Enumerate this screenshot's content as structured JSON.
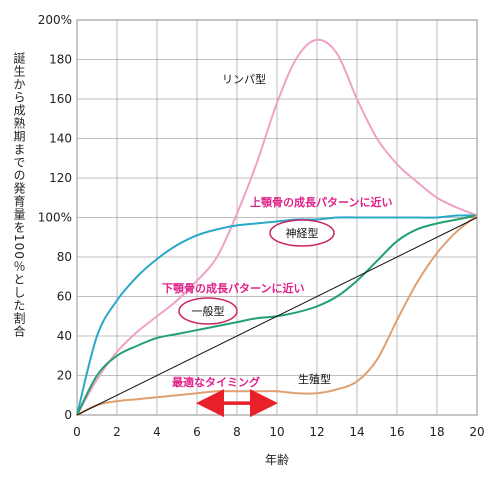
{
  "chart_data": {
    "type": "line",
    "xlabel": "年齢",
    "ylabel": "誕生から成熟期までの発育量を100％とした割合",
    "xlim": [
      0,
      20
    ],
    "ylim": [
      0,
      200
    ],
    "x_ticks": [
      "0",
      "2",
      "4",
      "6",
      "8",
      "10",
      "12",
      "14",
      "16",
      "18",
      "20"
    ],
    "y_ticks": [
      "0",
      "20",
      "40",
      "60",
      "80",
      "100%",
      "120",
      "140",
      "160",
      "180",
      "200%"
    ],
    "grid": true,
    "series": [
      {
        "name": "リンパ型",
        "color": "#f0a0c8",
        "x": [
          0,
          1,
          2,
          3,
          4,
          5,
          6,
          7,
          8,
          9,
          10,
          11,
          12,
          13,
          14,
          15,
          16,
          17,
          18,
          19,
          20
        ],
        "values": [
          0,
          18,
          32,
          42,
          50,
          58,
          68,
          80,
          102,
          128,
          158,
          181,
          190,
          183,
          160,
          140,
          127,
          118,
          110,
          105,
          101
        ]
      },
      {
        "name": "神経型",
        "color": "#2aa8c8",
        "x": [
          0,
          1,
          2,
          3,
          4,
          5,
          6,
          7,
          8,
          9,
          10,
          11,
          12,
          13,
          14,
          15,
          16,
          17,
          18,
          19,
          20
        ],
        "values": [
          0,
          40,
          58,
          70,
          79,
          86,
          91,
          94,
          96,
          97,
          98,
          99,
          99,
          100,
          100,
          100,
          100,
          100,
          100,
          101,
          101
        ]
      },
      {
        "name": "一般型",
        "color": "#22a070",
        "x": [
          0,
          1,
          2,
          3,
          4,
          5,
          6,
          7,
          8,
          9,
          10,
          11,
          12,
          13,
          14,
          15,
          16,
          17,
          18,
          19,
          20
        ],
        "values": [
          0,
          20,
          30,
          35,
          39,
          41,
          43,
          45,
          47,
          49,
          50,
          52,
          55,
          60,
          68,
          78,
          88,
          94,
          97,
          99,
          101
        ]
      },
      {
        "name": "生殖型",
        "color": "#e0a070",
        "x": [
          0,
          1,
          2,
          3,
          4,
          5,
          6,
          7,
          8,
          9,
          10,
          11,
          12,
          13,
          14,
          15,
          16,
          17,
          18,
          19,
          20
        ],
        "values": [
          0,
          5,
          7,
          8,
          9,
          10,
          11,
          12,
          12,
          12,
          12,
          11,
          11,
          13,
          17,
          28,
          48,
          67,
          82,
          93,
          101
        ]
      },
      {
        "name": "",
        "color": "#111111",
        "x": [
          0,
          20
        ],
        "values": [
          0,
          100
        ]
      }
    ],
    "annotations": [
      {
        "text": "上顎骨の成長パターンに近い"
      },
      {
        "text": "下顎骨の成長パターンに近い"
      },
      {
        "text": "最適なタイミング"
      }
    ],
    "timing_range": [
      6,
      10
    ]
  }
}
